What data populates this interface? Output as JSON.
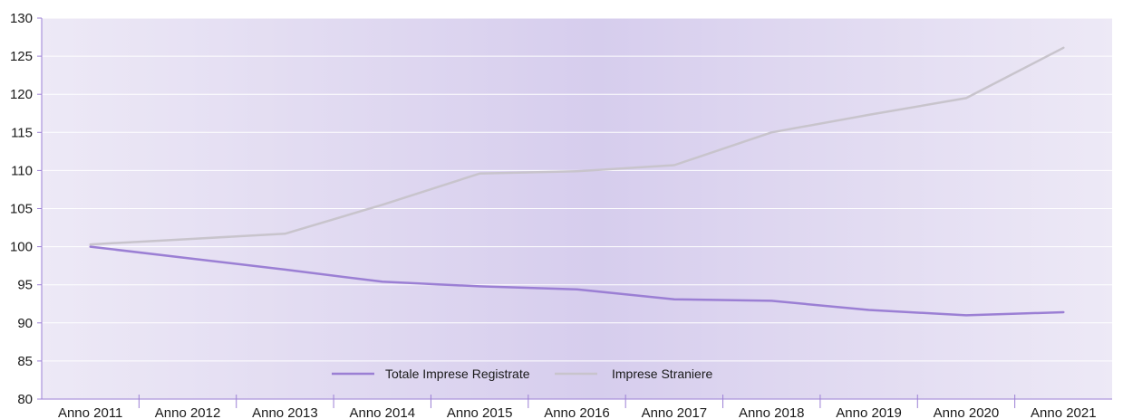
{
  "chart_data": {
    "type": "line",
    "categories": [
      "Anno 2011",
      "Anno 2012",
      "Anno 2013",
      "Anno 2014",
      "Anno 2015",
      "Anno 2016",
      "Anno 2017",
      "Anno 2018",
      "Anno 2019",
      "Anno 2020",
      "Anno 2021"
    ],
    "series": [
      {
        "name": "Totale Imprese Registrate",
        "color": "#9b7fd4",
        "values": [
          100,
          98.5,
          97.0,
          95.4,
          94.8,
          94.4,
          93.1,
          92.9,
          91.7,
          91.0,
          91.4
        ]
      },
      {
        "name": "Imprese Straniere",
        "color": "#c8c4cc",
        "values": [
          100.3,
          101.0,
          101.7,
          105.5,
          109.6,
          109.9,
          110.7,
          115.0,
          117.3,
          119.5,
          126.1
        ]
      }
    ],
    "y_ticks": [
      "80",
      "85",
      "90",
      "95",
      "100",
      "105",
      "110",
      "115",
      "120",
      "125",
      "130"
    ],
    "ylim": [
      80,
      130
    ],
    "grid": true,
    "legend_position": "bottom-center",
    "title": "",
    "xlabel": "",
    "ylabel": "",
    "colors": {
      "axis": "#9b7fd4",
      "grid": "#ffffff",
      "bg_edge": "#ede9f6",
      "bg_center": "#d6cded"
    }
  }
}
